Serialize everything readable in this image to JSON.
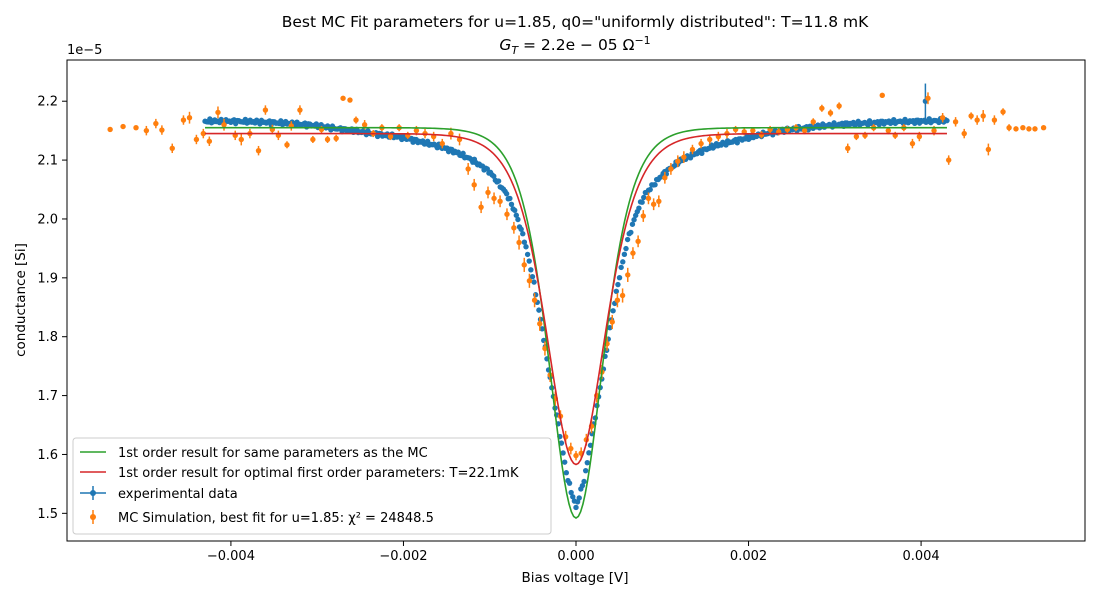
{
  "chart_data": {
    "type": "scatter",
    "title": "Best MC Fit parameters for u=1.85, q0=\"uniformly distributed\":  T=11.8 mK",
    "subtitle_prefix": "G",
    "subtitle_subscript": "T",
    "subtitle_mid": " = 2.2e − 05 Ω",
    "subtitle_superscript": "−1",
    "xlabel": "Bias voltage [V]",
    "ylabel": "conductance [Si]",
    "y_offset_text": "1e−5",
    "xlim": [
      -0.0059,
      0.0059
    ],
    "ylim": [
      1.453,
      2.27
    ],
    "xticks": [
      -0.004,
      -0.002,
      0.0,
      0.002,
      0.004
    ],
    "xtick_labels": [
      "−0.004",
      "−0.002",
      "0.000",
      "0.002",
      "0.004"
    ],
    "yticks": [
      1.5,
      1.6,
      1.7,
      1.8,
      1.9,
      2.0,
      2.1,
      2.2
    ],
    "ytick_labels": [
      "1.5",
      "1.6",
      "1.7",
      "1.8",
      "1.9",
      "2.0",
      "2.1",
      "2.2"
    ],
    "grid": false,
    "legend_position": "lower-left",
    "series": [
      {
        "name": "1st order result for same parameters as the MC",
        "kind": "line",
        "color": "#2ca02c",
        "model": {
          "base": 2.155,
          "depth": 0.663,
          "width": 0.00042,
          "shape": "sech2",
          "x_range": [
            -0.0043,
            0.0043
          ]
        }
      },
      {
        "name": "1st order result for optimal first order parameters: T=22.1mK",
        "kind": "line",
        "color": "#d62728",
        "model": {
          "base": 2.145,
          "depth": 0.562,
          "width": 0.00046,
          "shape": "sech2",
          "x_range": [
            -0.0043,
            0.0043
          ]
        }
      },
      {
        "name": "experimental data",
        "kind": "errorbar",
        "color": "#1f77b4",
        "x_range": [
          -0.0043,
          0.0043
        ],
        "points": [
          [
            -0.0043,
            2.166
          ],
          [
            -0.004,
            2.166
          ],
          [
            -0.0037,
            2.165
          ],
          [
            -0.0034,
            2.163
          ],
          [
            -0.0031,
            2.16
          ],
          [
            -0.0028,
            2.154
          ],
          [
            -0.0025,
            2.148
          ],
          [
            -0.0022,
            2.142
          ],
          [
            -0.002,
            2.138
          ],
          [
            -0.0018,
            2.131
          ],
          [
            -0.0016,
            2.124
          ],
          [
            -0.0014,
            2.114
          ],
          [
            -0.0012,
            2.1
          ],
          [
            -0.001,
            2.08
          ],
          [
            -0.0008,
            2.042
          ],
          [
            -0.0007,
            2.01
          ],
          [
            -0.0006,
            1.965
          ],
          [
            -0.0005,
            1.9
          ],
          [
            -0.0004,
            1.82
          ],
          [
            -0.0003,
            1.73
          ],
          [
            -0.0002,
            1.645
          ],
          [
            -0.0001,
            1.56
          ],
          [
            0.0,
            1.51
          ],
          [
            0.0001,
            1.56
          ],
          [
            0.0002,
            1.645
          ],
          [
            0.0003,
            1.73
          ],
          [
            0.0004,
            1.82
          ],
          [
            0.0005,
            1.9
          ],
          [
            0.0006,
            1.965
          ],
          [
            0.0007,
            2.01
          ],
          [
            0.0008,
            2.042
          ],
          [
            0.001,
            2.075
          ],
          [
            0.0012,
            2.098
          ],
          [
            0.0014,
            2.112
          ],
          [
            0.0016,
            2.124
          ],
          [
            0.0018,
            2.131
          ],
          [
            0.002,
            2.138
          ],
          [
            0.0022,
            2.145
          ],
          [
            0.0025,
            2.152
          ],
          [
            0.0028,
            2.157
          ],
          [
            0.0031,
            2.161
          ],
          [
            0.0034,
            2.163
          ],
          [
            0.0037,
            2.165
          ],
          [
            0.004,
            2.166
          ],
          [
            0.0043,
            2.167
          ]
        ],
        "outlier": {
          "x": 0.00405,
          "y": 2.2,
          "err": 0.03
        }
      },
      {
        "name": "MC Simulation, best fit for u=1.85:  χ² = 24848.5",
        "kind": "errorbar",
        "color": "#ff7f0e",
        "points": [
          [
            -0.0054,
            2.152,
            0
          ],
          [
            -0.00525,
            2.157,
            0
          ],
          [
            -0.0051,
            2.155,
            0
          ],
          [
            -0.00498,
            2.15,
            0.008
          ],
          [
            -0.00487,
            2.162,
            0.008
          ],
          [
            -0.0048,
            2.151,
            0.008
          ],
          [
            -0.00468,
            2.12,
            0.008
          ],
          [
            -0.00455,
            2.168,
            0.008
          ],
          [
            -0.00448,
            2.172,
            0.01
          ],
          [
            -0.0044,
            2.135,
            0.008
          ],
          [
            -0.00432,
            2.145,
            0.008
          ],
          [
            -0.00425,
            2.132,
            0.008
          ],
          [
            -0.00415,
            2.181,
            0.01
          ],
          [
            -0.00408,
            2.16,
            0.01
          ],
          [
            -0.00395,
            2.142,
            0.008
          ],
          [
            -0.00388,
            2.135,
            0.01
          ],
          [
            -0.00378,
            2.145,
            0.008
          ],
          [
            -0.00368,
            2.116,
            0.008
          ],
          [
            -0.0036,
            2.185,
            0.008
          ],
          [
            -0.00352,
            2.152,
            0.008
          ],
          [
            -0.00345,
            2.142,
            0.008
          ],
          [
            -0.00335,
            2.126,
            0.006
          ],
          [
            -0.0033,
            2.158,
            0.008
          ],
          [
            -0.0032,
            2.185,
            0.008
          ],
          [
            -0.00305,
            2.135,
            0.006
          ],
          [
            -0.00295,
            2.152,
            0.006
          ],
          [
            -0.00288,
            2.135,
            0.006
          ],
          [
            -0.00278,
            2.137,
            0.006
          ],
          [
            -0.0027,
            2.205,
            0.004
          ],
          [
            -0.00262,
            2.202,
            0.004
          ],
          [
            -0.00255,
            2.168,
            0.006
          ],
          [
            -0.00245,
            2.16,
            0.008
          ],
          [
            -0.00235,
            2.145,
            0.006
          ],
          [
            -0.00225,
            2.155,
            0.006
          ],
          [
            -0.00215,
            2.14,
            0.006
          ],
          [
            -0.00205,
            2.155,
            0.006
          ],
          [
            -0.00195,
            2.142,
            0.006
          ],
          [
            -0.00185,
            2.15,
            0.008
          ],
          [
            -0.00175,
            2.145,
            0.008
          ],
          [
            -0.00165,
            2.14,
            0.008
          ],
          [
            -0.00155,
            2.128,
            0.008
          ],
          [
            -0.00145,
            2.145,
            0.01
          ],
          [
            -0.00135,
            2.135,
            0.01
          ],
          [
            -0.00125,
            2.085,
            0.01
          ],
          [
            -0.00118,
            2.058,
            0.01
          ],
          [
            -0.0011,
            2.02,
            0.01
          ],
          [
            -0.00102,
            2.045,
            0.01
          ],
          [
            -0.00095,
            2.035,
            0.01
          ],
          [
            -0.00088,
            2.03,
            0.01
          ],
          [
            -0.0008,
            2.008,
            0.01
          ],
          [
            -0.00072,
            1.985,
            0.01
          ],
          [
            -0.00066,
            1.96,
            0.012
          ],
          [
            -0.0006,
            1.922,
            0.012
          ],
          [
            -0.00054,
            1.895,
            0.012
          ],
          [
            -0.00048,
            1.862,
            0.012
          ],
          [
            -0.00042,
            1.822,
            0.012
          ],
          [
            -0.00036,
            1.78,
            0.012
          ],
          [
            -0.0003,
            1.735,
            0.012
          ],
          [
            -0.00024,
            1.695,
            0.012
          ],
          [
            -0.00018,
            1.665,
            0.01
          ],
          [
            -0.00012,
            1.63,
            0.01
          ],
          [
            -6e-05,
            1.61,
            0.01
          ],
          [
            0.0,
            1.598,
            0.008
          ],
          [
            6e-05,
            1.602,
            0.01
          ],
          [
            0.00012,
            1.625,
            0.01
          ],
          [
            0.00018,
            1.648,
            0.012
          ],
          [
            0.00024,
            1.7,
            0.012
          ],
          [
            0.0003,
            1.74,
            0.012
          ],
          [
            0.00036,
            1.788,
            0.012
          ],
          [
            0.00042,
            1.825,
            0.012
          ],
          [
            0.00048,
            1.862,
            0.012
          ],
          [
            0.00054,
            1.87,
            0.012
          ],
          [
            0.0006,
            1.905,
            0.012
          ],
          [
            0.00066,
            1.942,
            0.01
          ],
          [
            0.00072,
            1.962,
            0.01
          ],
          [
            0.00078,
            2.005,
            0.01
          ],
          [
            0.00084,
            2.035,
            0.01
          ],
          [
            0.0009,
            2.025,
            0.01
          ],
          [
            0.00096,
            2.03,
            0.01
          ],
          [
            0.00103,
            2.07,
            0.01
          ],
          [
            0.0011,
            2.085,
            0.01
          ],
          [
            0.00118,
            2.098,
            0.01
          ],
          [
            0.00125,
            2.105,
            0.01
          ],
          [
            0.00135,
            2.118,
            0.008
          ],
          [
            0.00145,
            2.128,
            0.008
          ],
          [
            0.00155,
            2.135,
            0.008
          ],
          [
            0.00165,
            2.14,
            0.008
          ],
          [
            0.00175,
            2.145,
            0.008
          ],
          [
            0.00185,
            2.152,
            0.006
          ],
          [
            0.00195,
            2.148,
            0.006
          ],
          [
            0.00205,
            2.15,
            0.006
          ],
          [
            0.00215,
            2.143,
            0.006
          ],
          [
            0.00225,
            2.152,
            0.006
          ],
          [
            0.00235,
            2.148,
            0.006
          ],
          [
            0.00245,
            2.152,
            0.006
          ],
          [
            0.00255,
            2.155,
            0.006
          ],
          [
            0.00265,
            2.15,
            0.006
          ],
          [
            0.00275,
            2.165,
            0.006
          ],
          [
            0.00285,
            2.188,
            0.006
          ],
          [
            0.00295,
            2.18,
            0.006
          ],
          [
            0.00305,
            2.192,
            0.006
          ],
          [
            0.00315,
            2.12,
            0.008
          ],
          [
            0.00325,
            2.14,
            0.006
          ],
          [
            0.00335,
            2.142,
            0.006
          ],
          [
            0.00345,
            2.155,
            0.006
          ],
          [
            0.00355,
            2.21,
            0.004
          ],
          [
            0.00362,
            2.15,
            0.006
          ],
          [
            0.0037,
            2.142,
            0.006
          ],
          [
            0.0038,
            2.155,
            0.006
          ],
          [
            0.0039,
            2.128,
            0.008
          ],
          [
            0.00398,
            2.14,
            0.008
          ],
          [
            0.00408,
            2.205,
            0.01
          ],
          [
            0.00415,
            2.15,
            0.008
          ],
          [
            0.00425,
            2.172,
            0.008
          ],
          [
            0.00432,
            2.1,
            0.008
          ],
          [
            0.0044,
            2.165,
            0.008
          ],
          [
            0.0045,
            2.145,
            0.008
          ],
          [
            0.00458,
            2.175,
            0.006
          ],
          [
            0.00465,
            2.168,
            0.008
          ],
          [
            0.00472,
            2.175,
            0.01
          ],
          [
            0.00478,
            2.118,
            0.01
          ],
          [
            0.00485,
            2.168,
            0.008
          ],
          [
            0.00495,
            2.182,
            0.006
          ],
          [
            0.00502,
            2.155,
            0.006
          ],
          [
            0.0051,
            2.153,
            0
          ],
          [
            0.00518,
            2.155,
            0
          ],
          [
            0.00525,
            2.153,
            0
          ],
          [
            0.00532,
            2.153,
            0
          ],
          [
            0.00542,
            2.155,
            0
          ]
        ]
      }
    ]
  }
}
